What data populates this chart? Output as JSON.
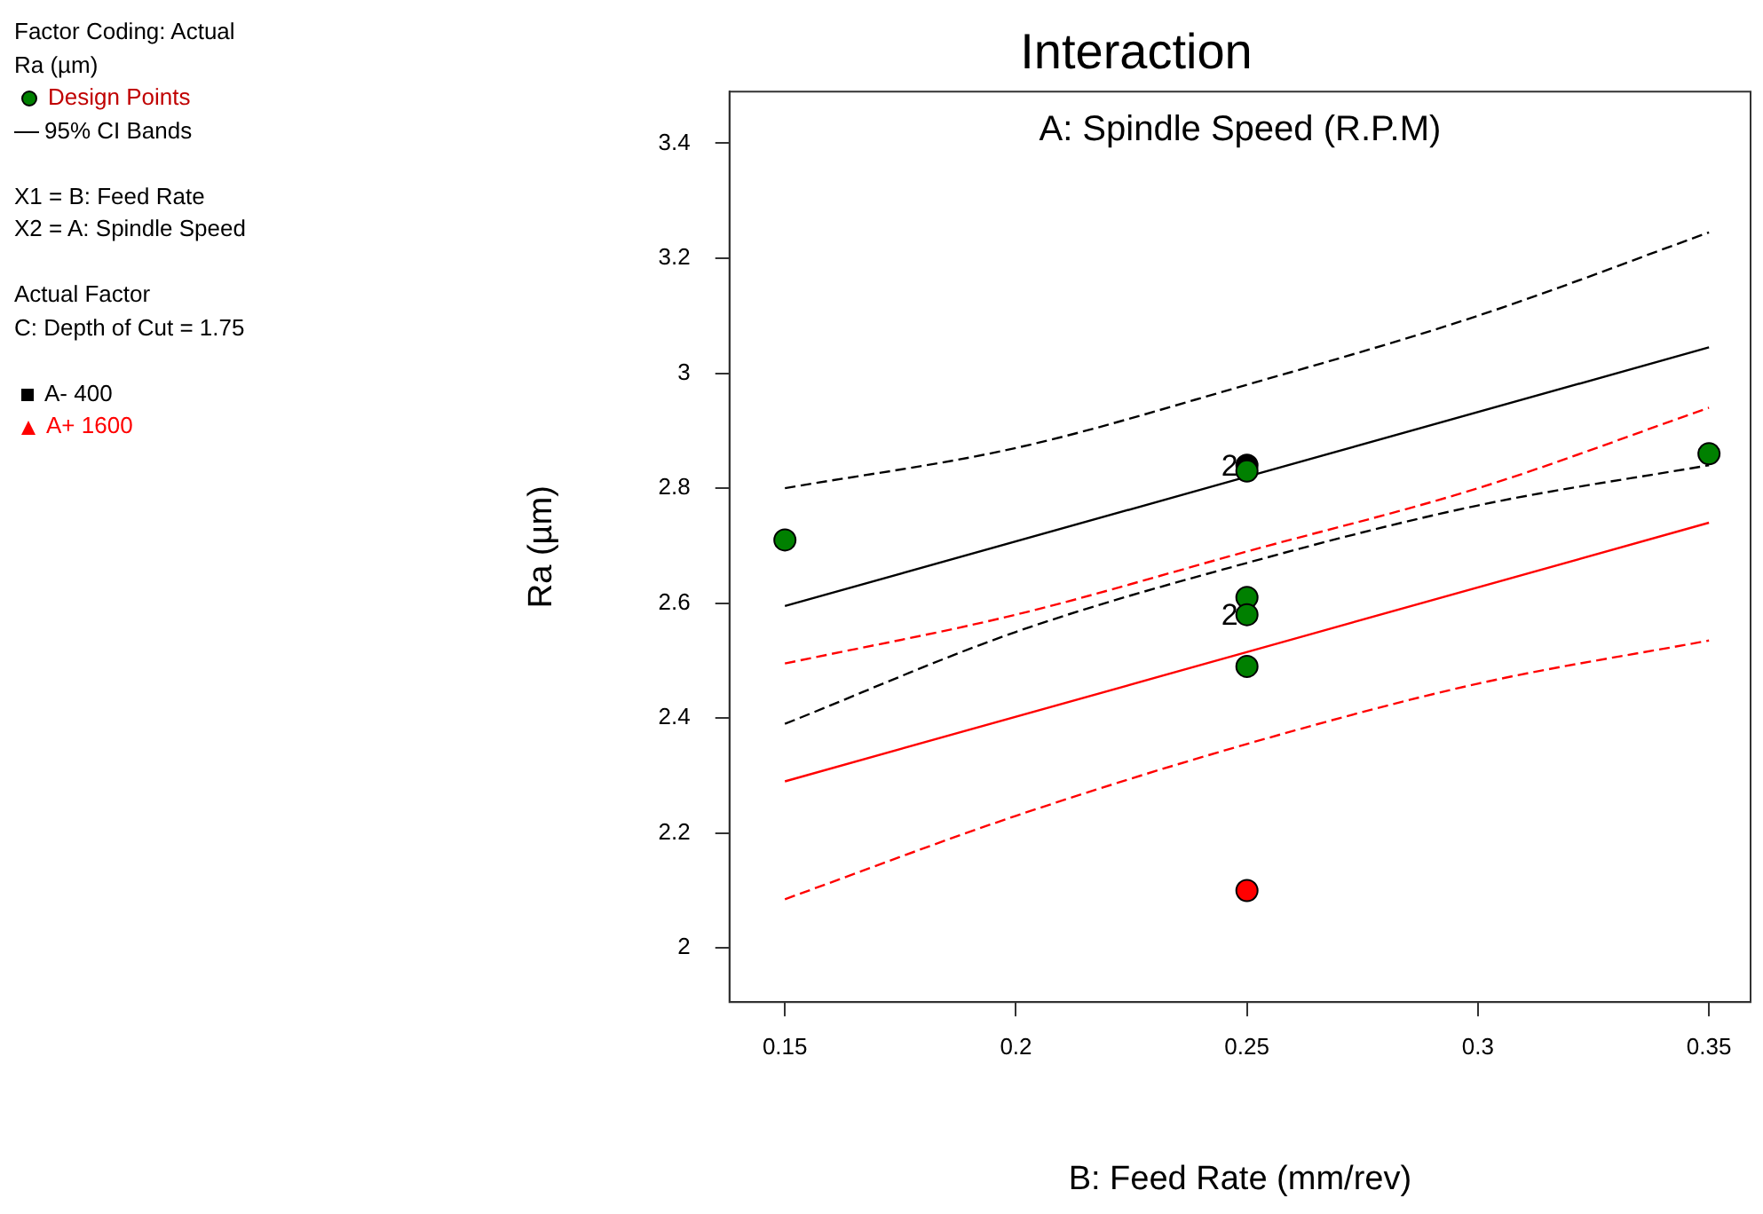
{
  "chart_data": {
    "type": "line",
    "title": "Interaction",
    "subtitle": "A: Spindle Speed (R.P.M)",
    "xlabel": "B: Feed Rate (mm/rev)",
    "ylabel": "Ra (µm)",
    "xlim": [
      0.138,
      0.359
    ],
    "xticks": [
      0.15,
      0.2,
      0.25,
      0.3,
      0.35
    ],
    "ylim": [
      1.906,
      3.49
    ],
    "yticks": [
      2,
      2.2,
      2.4,
      2.6,
      2.8,
      3,
      3.2,
      3.4
    ],
    "grid": false,
    "legend": "top left",
    "line_style": "solid",
    "series": [
      {
        "name": "A- 400",
        "color": "#000000",
        "x": [
          0.15,
          0.35
        ],
        "values": [
          2.595,
          3.045
        ]
      },
      {
        "name": "A+ 1600",
        "color": "#ff0000",
        "x": [
          0.15,
          0.35
        ],
        "values": [
          2.29,
          2.74
        ]
      },
      {
        "color": "#000000",
        "line_style": "dashed",
        "x": [
          0.15,
          0.2,
          0.25,
          0.3,
          0.35
        ],
        "values": [
          2.8,
          2.87,
          2.98,
          3.1,
          3.245
        ]
      },
      {
        "color": "#000000",
        "line_style": "dashed",
        "x": [
          0.15,
          0.2,
          0.25,
          0.3,
          0.35
        ],
        "values": [
          2.39,
          2.55,
          2.67,
          2.77,
          2.84
        ]
      },
      {
        "color": "#ff0000",
        "line_style": "dashed",
        "x": [
          0.15,
          0.2,
          0.25,
          0.3,
          0.35
        ],
        "values": [
          2.495,
          2.58,
          2.69,
          2.8,
          2.94
        ]
      },
      {
        "color": "#ff0000",
        "line_style": "dashed",
        "x": [
          0.15,
          0.2,
          0.25,
          0.3,
          0.35
        ],
        "values": [
          2.085,
          2.23,
          2.355,
          2.46,
          2.535
        ]
      },
      {
        "name": "Design Points",
        "type": "scatter",
        "color": "#008000",
        "x": [
          0.25,
          0.15,
          0.25,
          0.25,
          0.25,
          0.25,
          0.35,
          0.25
        ],
        "values": [
          2.84,
          2.71,
          2.83,
          2.61,
          2.58,
          2.49,
          2.86,
          2.1
        ],
        "colors": [
          "#000000",
          "#008000",
          "#008000",
          "#008000",
          "#008000",
          "#008000",
          "#008000",
          "#ff0000"
        ]
      }
    ],
    "annotations": [
      "Factor Coding: Actual",
      "Ra (µm)",
      "95% CI Bands",
      "X1 = B: Feed Rate",
      "X2 = A: Spindle Speed",
      "Actual Factor",
      "C: Depth of Cut = 1.75",
      {
        "text": "2",
        "x": 0.25,
        "y": 2.84
      },
      {
        "text": "2",
        "x": 0.25,
        "y": 2.58
      }
    ]
  }
}
